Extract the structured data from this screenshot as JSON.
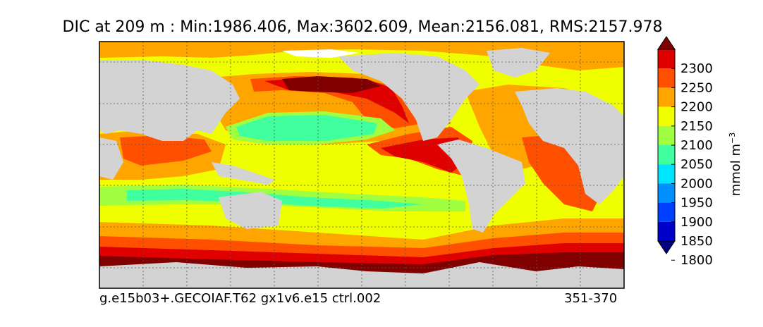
{
  "title": "DIC at 209 m : Min:1986.406, Max:3602.609, Mean:2156.081, RMS:2157.978",
  "footer": {
    "left": "g.e15b03+.GECOIAF.T62 gx1v6.e15 ctrl.002",
    "right": "351-370"
  },
  "colorbar": {
    "unit_base": "mmol m",
    "unit_exp": "−3",
    "ticks": [
      "2300",
      "2250",
      "2200",
      "2150",
      "2100",
      "2050",
      "2000",
      "1950",
      "1900",
      "1850",
      "1800"
    ],
    "colors": [
      "#000080",
      "#0000cd",
      "#0040ff",
      "#0090ff",
      "#00e5ff",
      "#40ff9f",
      "#a0ff40",
      "#f0ff00",
      "#ffa500",
      "#ff5000",
      "#e00000",
      "#800000"
    ],
    "extend": "both"
  },
  "chart_data": {
    "type": "heatmap",
    "variable": "DIC",
    "depth": "209 m",
    "stats": {
      "min": 1986.406,
      "max": 3602.609,
      "mean": 2156.081,
      "rms": 2157.978
    },
    "levels": [
      1800,
      1850,
      1900,
      1950,
      2000,
      2050,
      2100,
      2150,
      2200,
      2250,
      2300
    ],
    "projection": "global lon-lat, centered Pacific",
    "grid": true,
    "land_color": "#d3d3d3",
    "missing_color": "#ffffff"
  }
}
